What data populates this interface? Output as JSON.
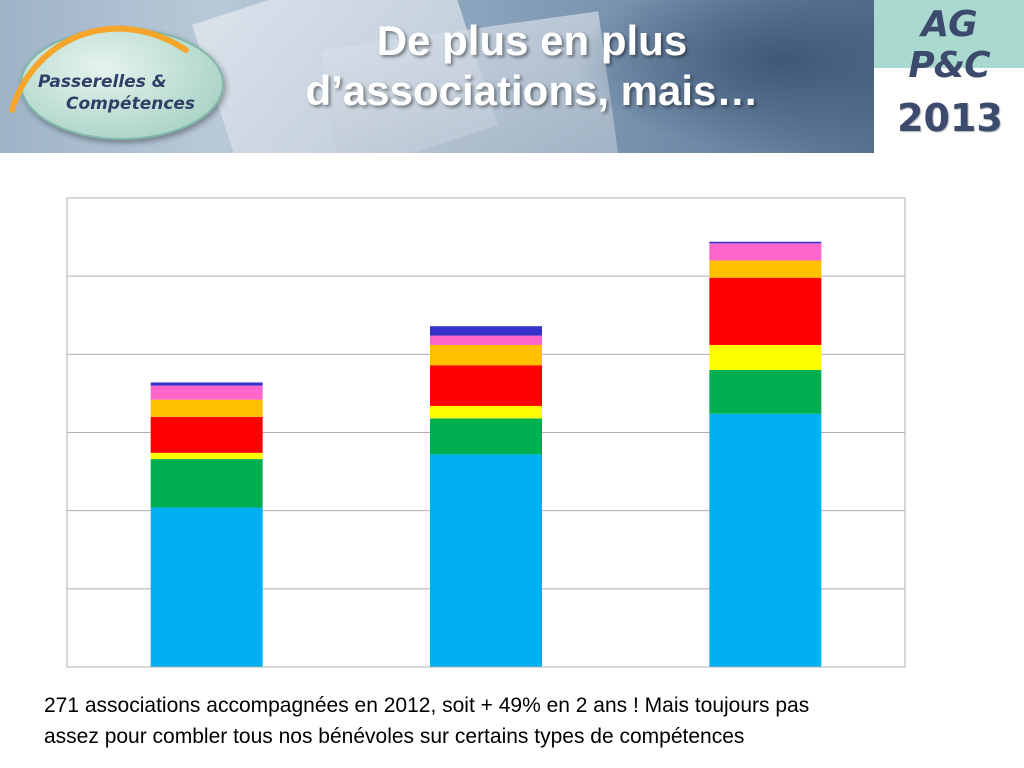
{
  "header": {
    "logo_line1": "Passerelles &",
    "logo_line2": "Compétences",
    "title_line1": "De plus en plus",
    "title_line2": "d’associations, mais…",
    "event": "AG P&C",
    "year": "2013"
  },
  "chart_data": {
    "type": "bar",
    "stacked": true,
    "categories": [
      "",
      "",
      ""
    ],
    "ylim": [
      0,
      300
    ],
    "grid": true,
    "series": [
      {
        "color": "#00b0f0",
        "values": [
          102,
          136,
          162
        ]
      },
      {
        "color": "#00b050",
        "values": [
          31,
          23,
          28
        ]
      },
      {
        "color": "#ffff00",
        "values": [
          4,
          8,
          16
        ]
      },
      {
        "color": "#ff0000",
        "values": [
          23,
          26,
          43
        ]
      },
      {
        "color": "#ffc000",
        "values": [
          11,
          13,
          11
        ]
      },
      {
        "color": "#ff66cc",
        "values": [
          9,
          6,
          11
        ]
      },
      {
        "color": "#3333cc",
        "values": [
          2,
          6,
          1
        ]
      }
    ]
  },
  "caption": {
    "line1": "271 associations accompagnées en 2012, soit + 49% en 2 ans ! Mais toujours pas",
    "line2": "assez pour combler tous nos bénévoles sur certains types de compétences"
  }
}
